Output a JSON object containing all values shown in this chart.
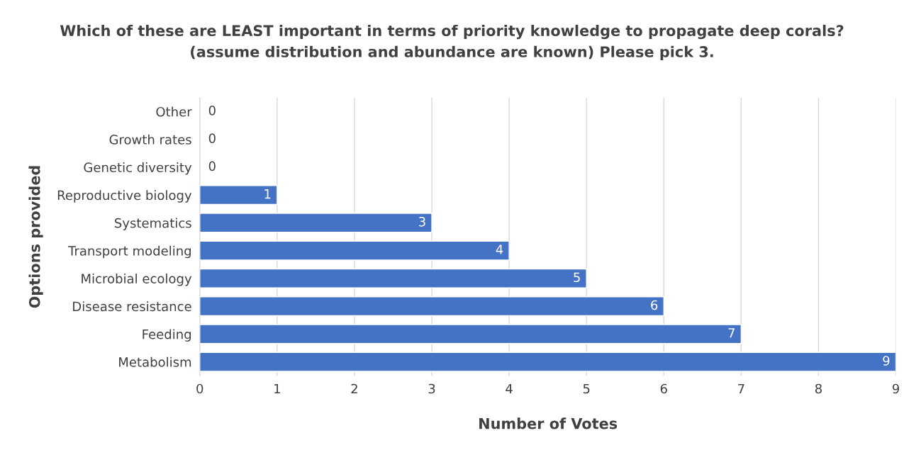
{
  "chart_data": {
    "type": "bar",
    "orientation": "horizontal",
    "title": "Which of these are LEAST important in terms of priority knowledge to propagate deep corals?\n(assume distribution and abundance are known) Please pick 3.",
    "xlabel": "Number of Votes",
    "ylabel": "Options provided",
    "categories": [
      "Other",
      "Growth rates",
      "Genetic diversity",
      "Reproductive biology",
      "Systematics",
      "Transport modeling",
      "Microbial ecology",
      "Disease resistance",
      "Feeding",
      "Metabolism"
    ],
    "values": [
      0,
      0,
      0,
      1,
      3,
      4,
      5,
      6,
      7,
      9
    ],
    "color": "#4472c4",
    "xlim": [
      0,
      9
    ],
    "xticks": [
      0,
      1,
      2,
      3,
      4,
      5,
      6,
      7,
      8,
      9
    ],
    "grid": "x",
    "data_labels": true
  }
}
